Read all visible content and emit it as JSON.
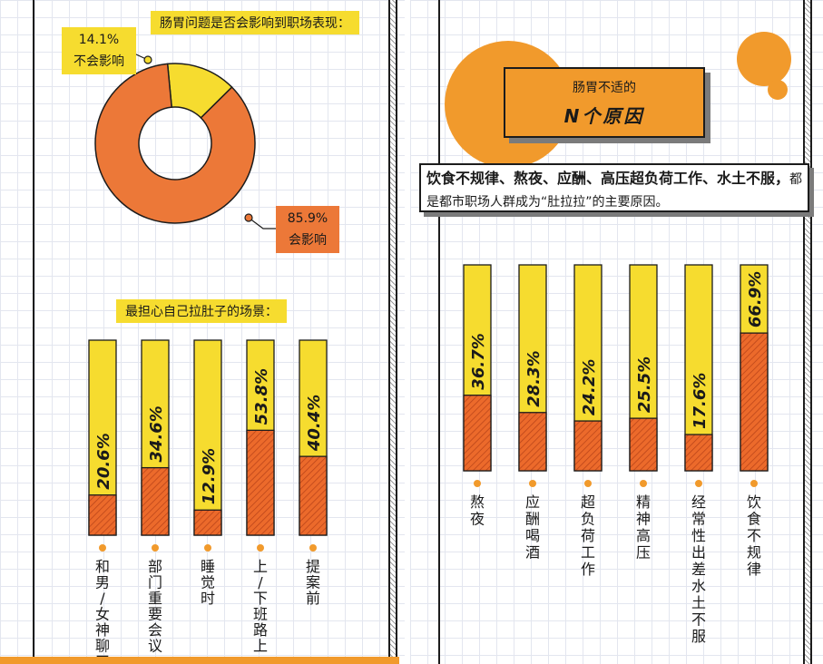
{
  "donut": {
    "title": "肠胃问题是否会影响到职场表现：",
    "slices": [
      {
        "label": "不会影响",
        "value": 14.1,
        "value_text": "14.1%",
        "color": "#f6dc2f"
      },
      {
        "label": "会影响",
        "value": 85.9,
        "value_text": "85.9%",
        "color": "#ec7838"
      }
    ]
  },
  "scenes": {
    "title": "最担心自己拉肚子的场景：",
    "bar_fill": "#ec6a2b",
    "bar_bg": "#f6dc2f",
    "bullet_color": "#f19a2c"
  },
  "reasons": {
    "banner_line1": "肠胃不适的",
    "banner_line2": "N个原因",
    "text_strong": "饮食不规律、熬夜、应酬、高压超负荷工作、水土不服，",
    "text_normal": "都是都市职场人群成为“肚拉拉”的主要原因。"
  },
  "chart_data": [
    {
      "type": "pie",
      "title": "肠胃问题是否会影响到职场表现：",
      "labels": [
        "不会影响",
        "会影响"
      ],
      "values": [
        14.1,
        85.9
      ]
    },
    {
      "type": "bar",
      "title": "最担心自己拉肚子的场景：",
      "categories": [
        "和男/女神聊天",
        "部门重要会议",
        "睡觉时",
        "上/下班路上",
        "提案前"
      ],
      "values": [
        20.6,
        34.6,
        12.9,
        53.8,
        40.4
      ],
      "value_texts": [
        "20.6%",
        "34.6%",
        "12.9%",
        "53.8%",
        "40.4%"
      ],
      "ylim": [
        0,
        100
      ]
    },
    {
      "type": "bar",
      "title": "",
      "categories": [
        "熬夜",
        "应酬喝酒",
        "超负荷工作",
        "精神高压",
        "经常性出差水土不服",
        "饮食不规律"
      ],
      "values": [
        36.7,
        28.3,
        24.2,
        25.5,
        17.6,
        66.9
      ],
      "value_texts": [
        "36.7%",
        "28.3%",
        "24.2%",
        "25.5%",
        "17.6%",
        "66.9%"
      ],
      "ylim": [
        0,
        100
      ]
    }
  ]
}
